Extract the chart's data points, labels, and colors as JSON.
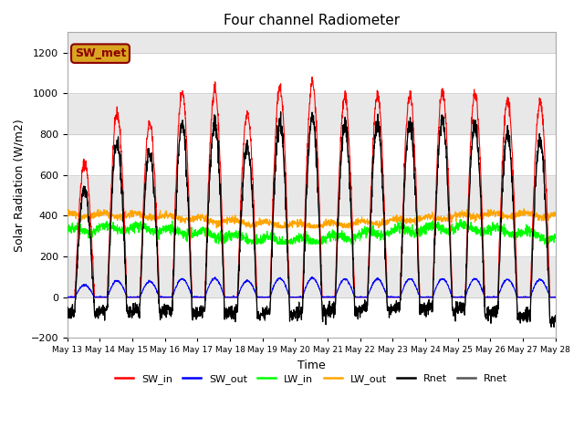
{
  "title": "Four channel Radiometer",
  "xlabel": "Time",
  "ylabel": "Solar Radiation (W/m2)",
  "ylim": [
    -200,
    1300
  ],
  "yticks": [
    -200,
    0,
    200,
    400,
    600,
    800,
    1000,
    1200
  ],
  "annotation_text": "SW_met",
  "annotation_color": "#8B0000",
  "annotation_bg": "#DAA520",
  "n_days": 15,
  "start_day": 13,
  "legend_entries": [
    "SW_in",
    "SW_out",
    "LW_in",
    "LW_out",
    "Rnet",
    "Rnet"
  ],
  "legend_colors": [
    "red",
    "blue",
    "lime",
    "orange",
    "black",
    "#555555"
  ],
  "band_colors": [
    "white",
    "#E8E8E8"
  ],
  "band_boundaries": [
    -200,
    0,
    200,
    400,
    600,
    800,
    1000,
    1200,
    1400
  ],
  "figsize": [
    6.4,
    4.8
  ],
  "dpi": 100
}
